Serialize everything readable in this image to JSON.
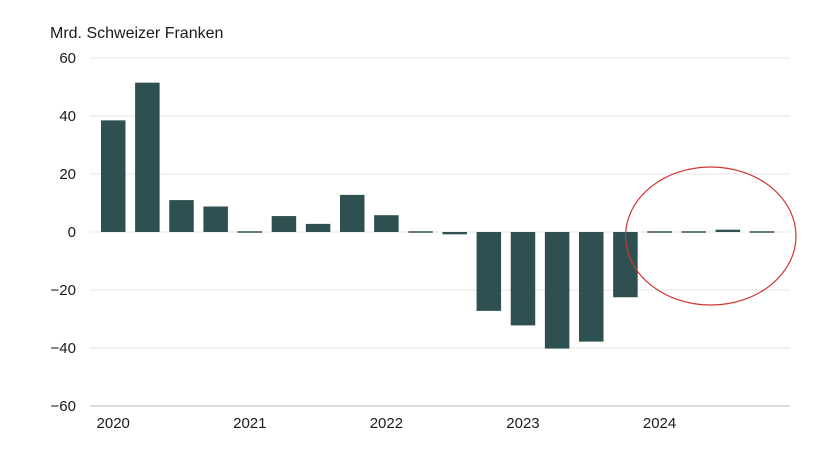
{
  "chart_data": {
    "type": "bar",
    "ylabel": "Mrd. Schweizer Franken",
    "ylim": [
      -60,
      60
    ],
    "y_ticks": [
      60,
      40,
      20,
      0,
      -20,
      -40,
      -60
    ],
    "y_tick_labels": [
      "60",
      "40",
      "20",
      "0",
      "−20",
      "−40",
      "−60"
    ],
    "x_tick_labels": [
      "2020",
      "2021",
      "2022",
      "2023",
      "2024"
    ],
    "categories": [
      "2020Q1",
      "2020Q2",
      "2020Q3",
      "2020Q4",
      "2021Q1",
      "2021Q2",
      "2021Q3",
      "2021Q4",
      "2022Q1",
      "2022Q2",
      "2022Q3",
      "2022Q4",
      "2023Q1",
      "2023Q2",
      "2023Q3",
      "2023Q4",
      "2024Q1",
      "2024Q2",
      "2024Q3",
      "2024Q4"
    ],
    "values": [
      38.5,
      51.5,
      11,
      8.8,
      0.5,
      5.5,
      2.8,
      12.8,
      5.8,
      0.2,
      -0.8,
      -27.2,
      -32.2,
      -40.2,
      -37.8,
      -22.5,
      0.4,
      0.3,
      0.8,
      0.3
    ],
    "grid": true,
    "bar_color": "#2e5050",
    "annotation_color": "#d0342c"
  }
}
